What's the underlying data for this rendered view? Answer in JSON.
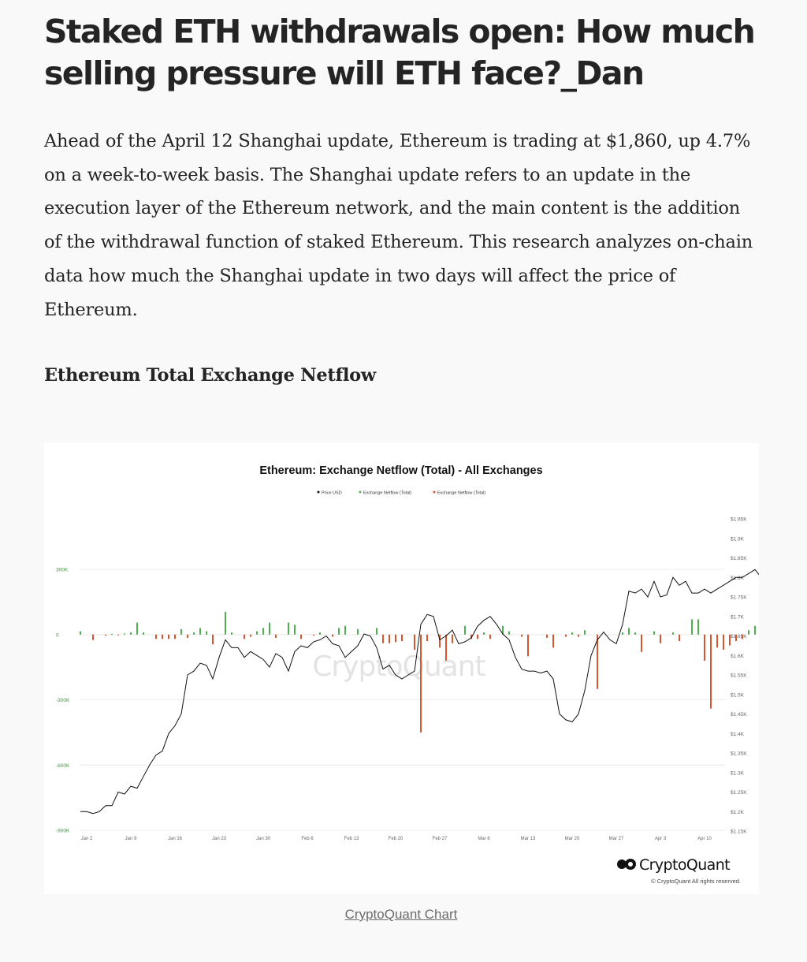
{
  "article": {
    "title": "Staked ETH withdrawals open: How much selling pressure will ETH face?_Dan",
    "paragraph": "Ahead of the April 12 Shanghai update, Ethereum is trading at $1,860, up 4.7% on a week-to-week basis. The Shanghai update refers to an update in the execution layer of the Ethereum network, and the main content is the addition of the withdrawal function of staked Ethereum. This research analyzes on-chain data how much the Shanghai update in two days will affect the price of Ethereum.",
    "subheading": "Ethereum Total Exchange Netflow",
    "caption": "CryptoQuant Chart"
  },
  "figure": {
    "brand": "CryptoQuant",
    "watermark": "CryptoQuant",
    "copyright": "© CryptoQuant All rights reserved."
  },
  "colors": {
    "positive": "#4caf50",
    "negative": "#d9532f",
    "price_line": "#111111",
    "left_axis_text": "#3a9b3a",
    "text": "#242424"
  },
  "chart_data": {
    "type": "bar",
    "title": "Ethereum: Exchange Netflow (Total) - All Exchanges",
    "legend_position": "top-center",
    "legend": [
      "Price USD",
      "Exchange Netflow (Total)",
      "Exchange Netflow (Total)"
    ],
    "x_ticks": [
      "Jan 2",
      "Jan 9",
      "Jan 16",
      "Jan 23",
      "Jan 30",
      "Feb 6",
      "Feb 13",
      "Feb 20",
      "Feb 27",
      "Mar 6",
      "Mar 13",
      "Mar 20",
      "Mar 27",
      "Apr 3",
      "Apr 10"
    ],
    "left_axis": {
      "ticks": [
        300000,
        0,
        -300000,
        -600000,
        -900000
      ],
      "tick_labels": [
        "300K",
        "0",
        "-300K",
        "-600K",
        "-900K"
      ],
      "range": [
        -900000,
        300000
      ],
      "grid": true
    },
    "right_axis": {
      "ticks": [
        1950,
        1900,
        1850,
        1800,
        1750,
        1700,
        1650,
        1600,
        1550,
        1500,
        1450,
        1400,
        1350,
        1300,
        1250,
        1200,
        1150
      ],
      "tick_labels": [
        "$1.95K",
        "$1.9K",
        "$1.85K",
        "$1.8K",
        "$1.75K",
        "$1.7K",
        "$1.65K",
        "$1.6K",
        "$1.55K",
        "$1.5K",
        "$1.45K",
        "$1.4K",
        "$1.35K",
        "$1.3K",
        "$1.25K",
        "$1.2K",
        "$1.15K"
      ],
      "range": [
        1150,
        1950
      ]
    },
    "netflow_series": {
      "name": "Exchange Netflow (Total)",
      "x_start": "Jan 1",
      "step_days": 1,
      "values": [
        15000,
        0,
        -25000,
        0,
        -5000,
        3000,
        -3000,
        5000,
        10000,
        55000,
        10000,
        0,
        -20000,
        -20000,
        -20000,
        -20000,
        25000,
        -15000,
        10000,
        30000,
        15000,
        -45000,
        0,
        105000,
        10000,
        0,
        -20000,
        -10000,
        15000,
        30000,
        55000,
        -15000,
        0,
        55000,
        45000,
        -20000,
        0,
        -5000,
        10000,
        0,
        -10000,
        30000,
        40000,
        0,
        25000,
        0,
        0,
        30000,
        -40000,
        -40000,
        -35000,
        -30000,
        0,
        -70000,
        -450000,
        -30000,
        0,
        -60000,
        -120000,
        -40000,
        0,
        40000,
        -20000,
        -20000,
        10000,
        -20000,
        0,
        40000,
        15000,
        0,
        -10000,
        -100000,
        0,
        0,
        -15000,
        -60000,
        0,
        -10000,
        10000,
        -10000,
        20000,
        0,
        -250000,
        0,
        0,
        0,
        10000,
        30000,
        10000,
        -80000,
        0,
        15000,
        -40000,
        0,
        10000,
        -30000,
        0,
        70000,
        70000,
        -120000,
        -340000,
        -60000,
        -70000,
        -50000,
        -30000,
        -20000,
        20000,
        40000,
        5000,
        30000,
        5000,
        0,
        -10000,
        0,
        10000,
        5000,
        40000,
        -40000,
        5000,
        -10000,
        -10000,
        -15000
      ]
    },
    "price_series": {
      "name": "Price USD",
      "x_start": "Jan 1",
      "step_days": 1,
      "values": [
        1200,
        1200,
        1195,
        1200,
        1215,
        1215,
        1250,
        1245,
        1265,
        1260,
        1290,
        1320,
        1345,
        1355,
        1400,
        1420,
        1450,
        1550,
        1560,
        1580,
        1575,
        1540,
        1595,
        1640,
        1620,
        1620,
        1595,
        1610,
        1600,
        1590,
        1570,
        1605,
        1595,
        1560,
        1610,
        1625,
        1620,
        1635,
        1640,
        1650,
        1630,
        1625,
        1595,
        1610,
        1625,
        1655,
        1650,
        1620,
        1565,
        1575,
        1550,
        1540,
        1550,
        1560,
        1680,
        1705,
        1700,
        1640,
        1650,
        1665,
        1630,
        1635,
        1645,
        1675,
        1690,
        1700,
        1680,
        1655,
        1640,
        1595,
        1565,
        1560,
        1560,
        1555,
        1560,
        1540,
        1450,
        1435,
        1430,
        1450,
        1510,
        1600,
        1640,
        1660,
        1640,
        1630,
        1680,
        1765,
        1760,
        1770,
        1750,
        1790,
        1750,
        1755,
        1800,
        1780,
        1790,
        1760,
        1760,
        1770,
        1760,
        1770,
        1780,
        1790,
        1800,
        1800,
        1810,
        1820,
        1800,
        1810,
        1830,
        1850,
        1880,
        1905,
        1880,
        1870,
        1865,
        1855,
        1860,
        1865,
        1865
      ]
    }
  }
}
